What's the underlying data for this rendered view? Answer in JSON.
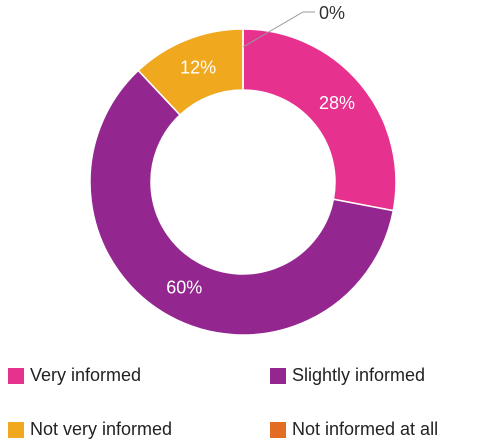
{
  "chart_data": {
    "type": "donut",
    "categories": [
      "Very informed",
      "Slightly informed",
      "Not very informed",
      "Not informed at all"
    ],
    "values": [
      28,
      60,
      12,
      0
    ],
    "value_labels": [
      "28%",
      "60%",
      "12%",
      "0%"
    ],
    "colors": [
      "#e6318e",
      "#93278f",
      "#f0a81f",
      "#e36c24"
    ],
    "legend": "bottom"
  }
}
